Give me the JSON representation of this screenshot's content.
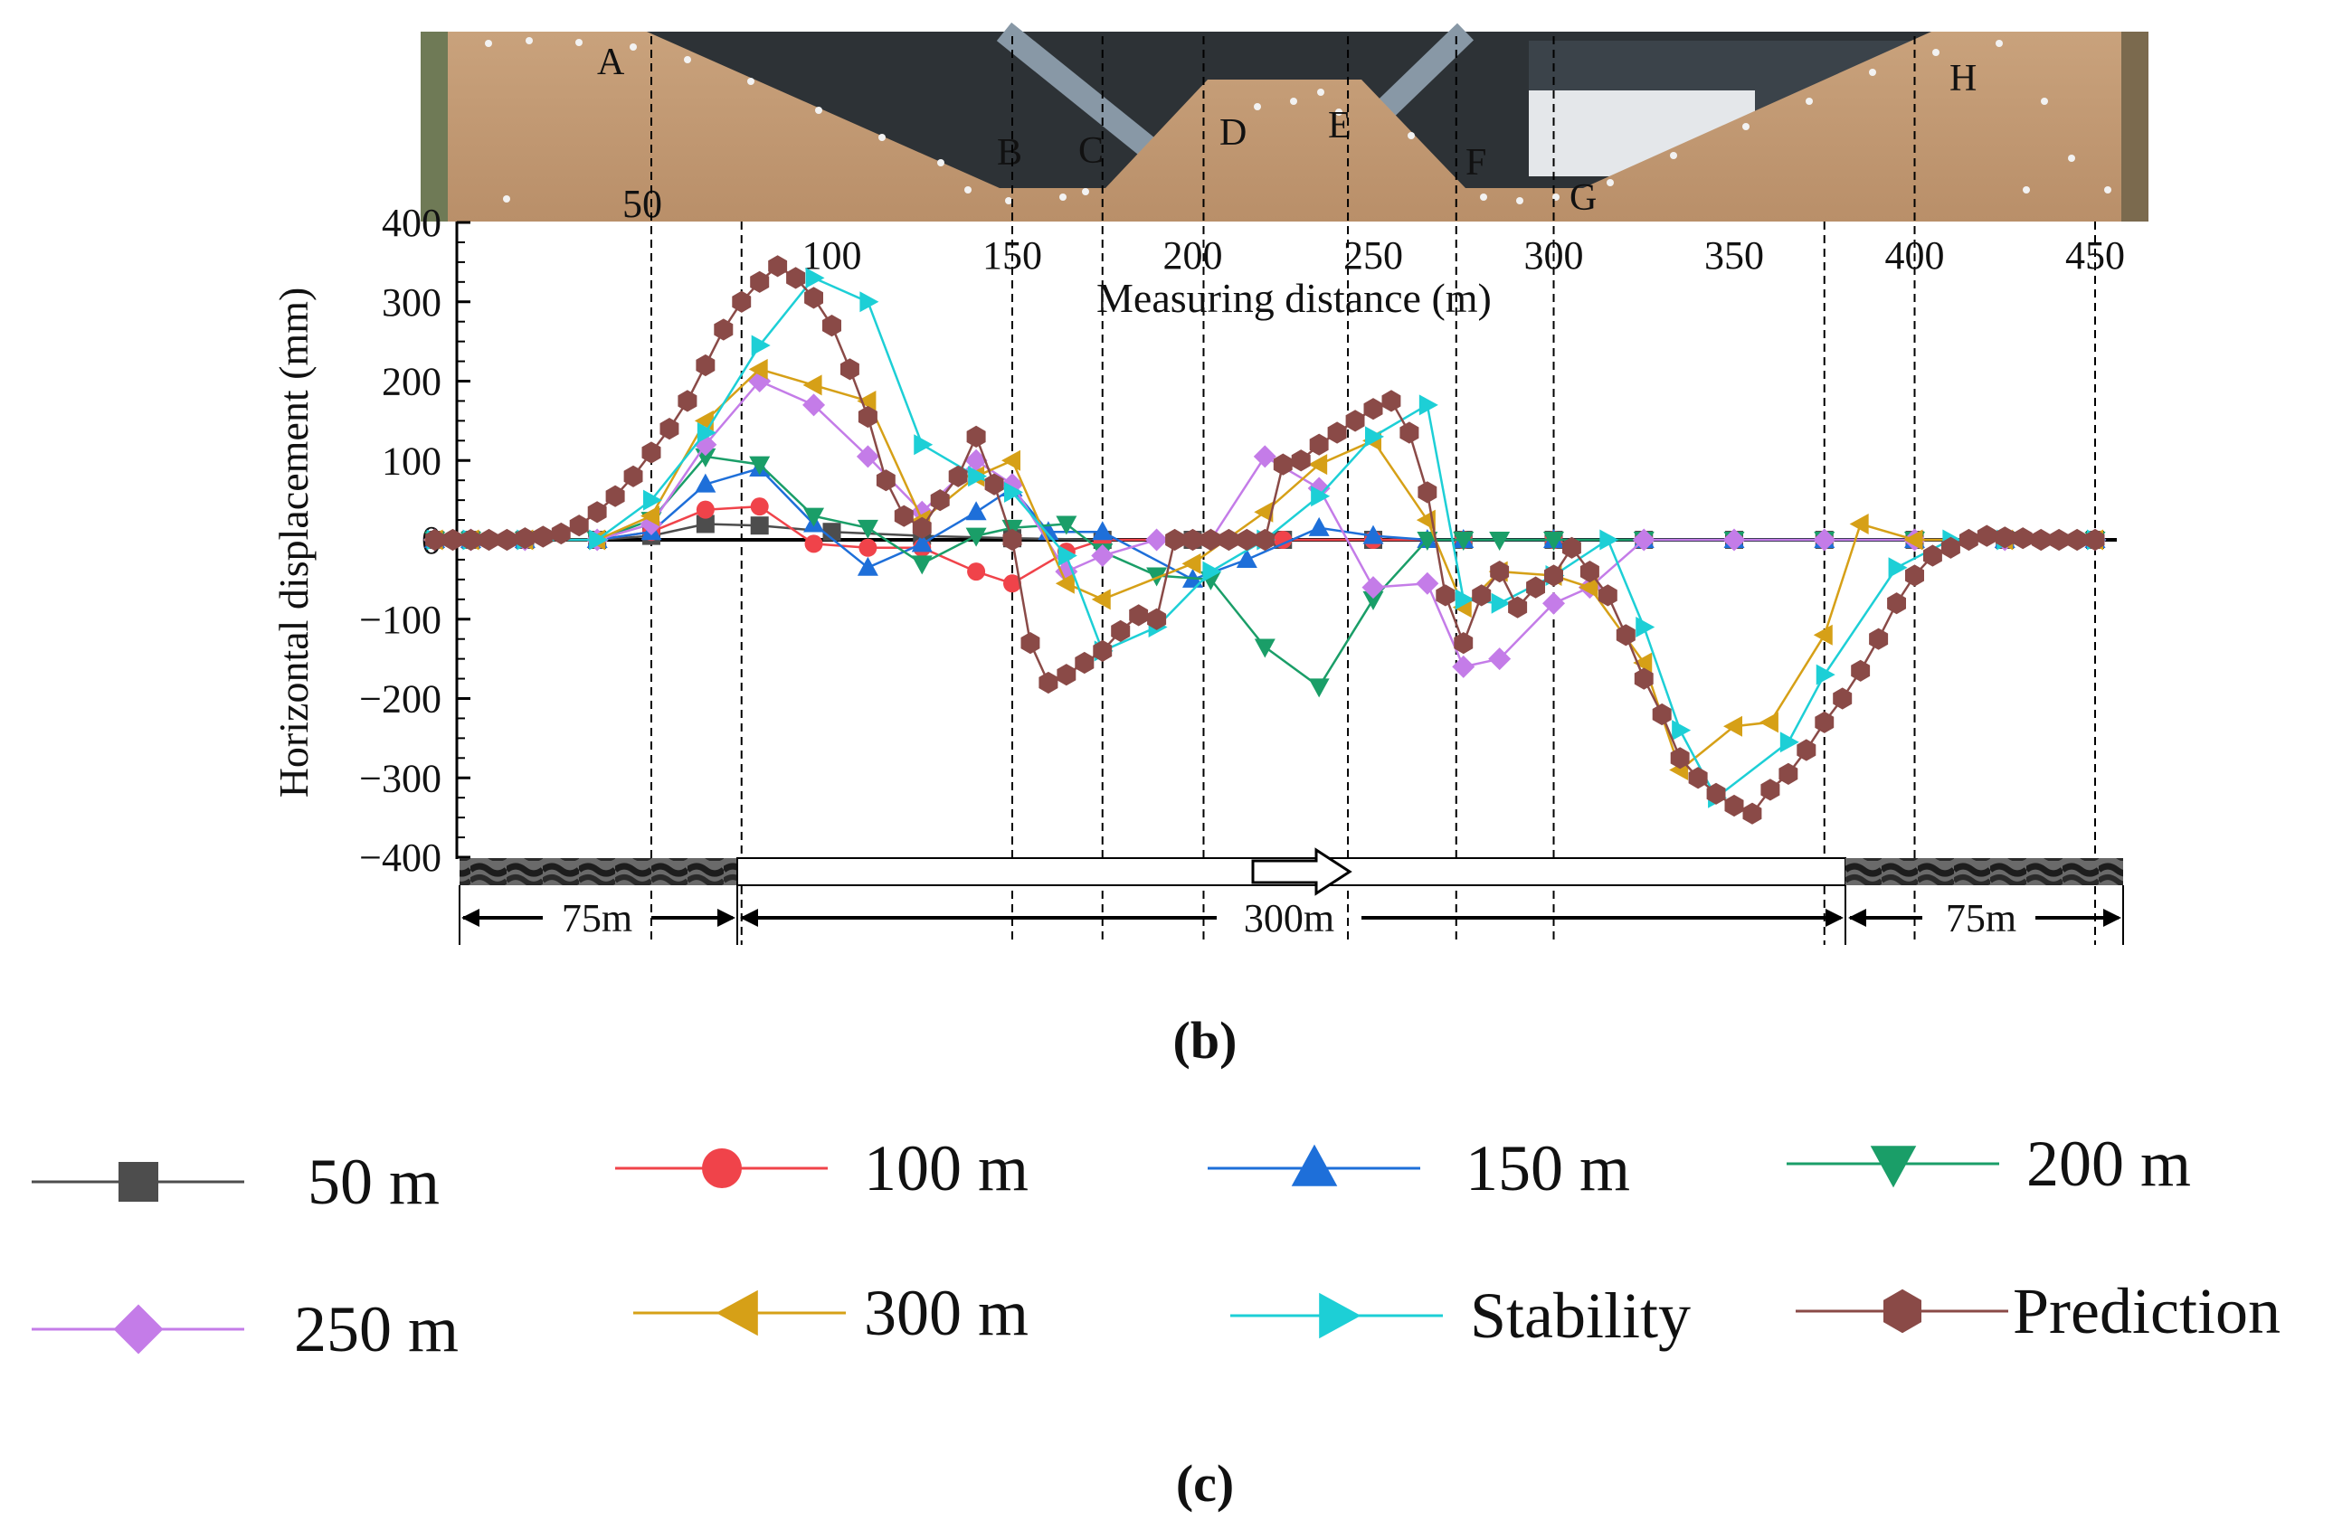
{
  "panel_labels": {
    "b": "(b)",
    "c": "(c)"
  },
  "photo_point_labels": [
    "A",
    "B",
    "C",
    "D",
    "E",
    "F",
    "G",
    "H"
  ],
  "photo_distance_label": "50",
  "span_labels": {
    "left": "75m",
    "middle": "300m",
    "right": "75m"
  },
  "colors": {
    "50 m": "#4d4d4d",
    "100 m": "#f0434a",
    "150 m": "#1e6fd9",
    "200 m": "#1a9e68",
    "250 m": "#c47ce8",
    "300 m": "#d6a017",
    "Stability": "#1dcfd6",
    "Prediction": "#8a4a47"
  },
  "chart_data": {
    "type": "line",
    "title": "",
    "xlabel": "Measuring distance (m)",
    "ylabel": "Horizontal displacement  (mm)",
    "xlim": [
      -10,
      450
    ],
    "ylim": [
      -400,
      400
    ],
    "x_ticks": [
      100,
      150,
      200,
      250,
      300,
      350,
      400,
      450
    ],
    "y_ticks": [
      400,
      300,
      200,
      100,
      0,
      -100,
      -200,
      -300,
      -400
    ],
    "y_tick_labels": [
      "400",
      "300",
      "200",
      "100",
      "0",
      "−100",
      "−200",
      "−300",
      "−400"
    ],
    "reference_lines_x": [
      50,
      75,
      150,
      175,
      203,
      243,
      273,
      300,
      375,
      400,
      450
    ],
    "legend": [
      "50 m",
      "100 m",
      "150 m",
      "200 m",
      "250 m",
      "300 m",
      "Stability",
      "Prediction"
    ],
    "series": [
      {
        "name": "50 m",
        "marker": "square",
        "x": [
          -10,
          0,
          15,
          35,
          50,
          65,
          80,
          100,
          125,
          150,
          175,
          200,
          225,
          250,
          275,
          300,
          325,
          350,
          375,
          400,
          425,
          450
        ],
        "y": [
          0,
          0,
          0,
          0,
          5,
          20,
          18,
          10,
          5,
          2,
          0,
          0,
          0,
          0,
          0,
          0,
          0,
          0,
          0,
          0,
          0,
          0
        ]
      },
      {
        "name": "100 m",
        "marker": "circle",
        "x": [
          -10,
          0,
          15,
          35,
          50,
          65,
          80,
          95,
          110,
          125,
          140,
          150,
          165,
          175,
          200,
          225,
          250,
          275,
          300,
          325,
          350,
          375,
          400,
          425,
          450
        ],
        "y": [
          0,
          0,
          0,
          0,
          10,
          38,
          42,
          -5,
          -10,
          -10,
          -40,
          -55,
          -15,
          0,
          0,
          0,
          0,
          0,
          0,
          0,
          0,
          0,
          0,
          0,
          0
        ]
      },
      {
        "name": "150 m",
        "marker": "up",
        "x": [
          -10,
          0,
          15,
          35,
          50,
          65,
          80,
          95,
          110,
          125,
          140,
          150,
          160,
          175,
          200,
          215,
          235,
          250,
          265,
          275,
          300,
          325,
          350,
          375,
          400,
          425,
          450
        ],
        "y": [
          0,
          0,
          0,
          0,
          10,
          70,
          90,
          20,
          -35,
          -5,
          35,
          65,
          10,
          10,
          -50,
          -25,
          15,
          5,
          0,
          0,
          0,
          0,
          0,
          0,
          0,
          0,
          0
        ]
      },
      {
        "name": "200 m",
        "marker": "down",
        "x": [
          -10,
          0,
          15,
          35,
          50,
          65,
          80,
          95,
          110,
          125,
          140,
          150,
          165,
          175,
          190,
          205,
          220,
          235,
          250,
          265,
          275,
          285,
          300,
          325,
          350,
          375,
          400,
          425,
          450
        ],
        "y": [
          0,
          0,
          0,
          0,
          25,
          105,
          95,
          30,
          15,
          -30,
          5,
          15,
          20,
          -15,
          -45,
          -50,
          -135,
          -185,
          -75,
          0,
          0,
          0,
          0,
          0,
          0,
          0,
          0,
          0,
          0
        ]
      },
      {
        "name": "250 m",
        "marker": "diamond",
        "x": [
          -10,
          0,
          15,
          35,
          50,
          65,
          80,
          95,
          110,
          125,
          140,
          150,
          165,
          175,
          190,
          205,
          220,
          235,
          250,
          265,
          275,
          285,
          300,
          310,
          325,
          350,
          375,
          400,
          425,
          450
        ],
        "y": [
          0,
          0,
          0,
          0,
          20,
          120,
          200,
          170,
          105,
          35,
          100,
          70,
          -40,
          -20,
          0,
          0,
          105,
          65,
          -60,
          -55,
          -160,
          -150,
          -80,
          -60,
          0,
          0,
          0,
          0,
          0,
          0
        ]
      },
      {
        "name": "300 m",
        "marker": "left",
        "x": [
          -10,
          0,
          15,
          35,
          50,
          65,
          80,
          95,
          110,
          125,
          140,
          150,
          165,
          175,
          200,
          220,
          235,
          250,
          265,
          275,
          285,
          300,
          310,
          325,
          335,
          350,
          360,
          375,
          385,
          400,
          425,
          450
        ],
        "y": [
          0,
          0,
          0,
          0,
          30,
          150,
          215,
          195,
          175,
          25,
          80,
          100,
          -55,
          -75,
          -30,
          35,
          95,
          125,
          25,
          -85,
          -40,
          -45,
          -60,
          -155,
          -290,
          -235,
          -230,
          -120,
          20,
          0,
          0,
          0
        ]
      },
      {
        "name": "Stability",
        "marker": "right",
        "x": [
          -10,
          0,
          15,
          35,
          50,
          65,
          80,
          95,
          110,
          125,
          140,
          150,
          165,
          175,
          190,
          205,
          220,
          235,
          250,
          265,
          275,
          285,
          300,
          315,
          325,
          335,
          345,
          365,
          375,
          395,
          410,
          425,
          450
        ],
        "y": [
          0,
          0,
          0,
          0,
          50,
          135,
          245,
          330,
          300,
          120,
          80,
          60,
          -20,
          -140,
          -110,
          -40,
          0,
          55,
          130,
          170,
          -75,
          -80,
          -45,
          0,
          -110,
          -240,
          -325,
          -255,
          -170,
          -35,
          0,
          0,
          0
        ]
      },
      {
        "name": "Prediction",
        "marker": "hexagon",
        "x": [
          -10,
          -5,
          0,
          5,
          10,
          15,
          20,
          25,
          30,
          35,
          40,
          45,
          50,
          55,
          60,
          65,
          70,
          75,
          80,
          85,
          90,
          95,
          100,
          105,
          110,
          115,
          120,
          125,
          130,
          135,
          140,
          145,
          150,
          155,
          160,
          165,
          170,
          175,
          180,
          185,
          190,
          195,
          200,
          205,
          210,
          215,
          220,
          225,
          230,
          235,
          240,
          245,
          250,
          255,
          260,
          265,
          270,
          275,
          280,
          285,
          290,
          295,
          300,
          305,
          310,
          315,
          320,
          325,
          330,
          335,
          340,
          345,
          350,
          355,
          360,
          365,
          370,
          375,
          380,
          385,
          390,
          395,
          400,
          405,
          410,
          415,
          420,
          425,
          430,
          435,
          440,
          445,
          450
        ],
        "y": [
          0,
          0,
          0,
          0,
          0,
          2,
          4,
          8,
          18,
          35,
          55,
          80,
          110,
          140,
          175,
          220,
          265,
          300,
          325,
          345,
          330,
          305,
          270,
          215,
          155,
          75,
          30,
          15,
          50,
          80,
          130,
          70,
          0,
          -130,
          -180,
          -170,
          -155,
          -140,
          -115,
          -95,
          -100,
          0,
          0,
          0,
          0,
          0,
          0,
          95,
          100,
          120,
          135,
          150,
          165,
          175,
          135,
          60,
          -70,
          -130,
          -70,
          -40,
          -85,
          -60,
          -45,
          -10,
          -40,
          -70,
          -120,
          -175,
          -220,
          -275,
          -300,
          -320,
          -335,
          -345,
          -315,
          -295,
          -265,
          -230,
          -200,
          -165,
          -125,
          -80,
          -45,
          -20,
          -10,
          0,
          5,
          3,
          2,
          0,
          0,
          0,
          0
        ]
      }
    ]
  }
}
